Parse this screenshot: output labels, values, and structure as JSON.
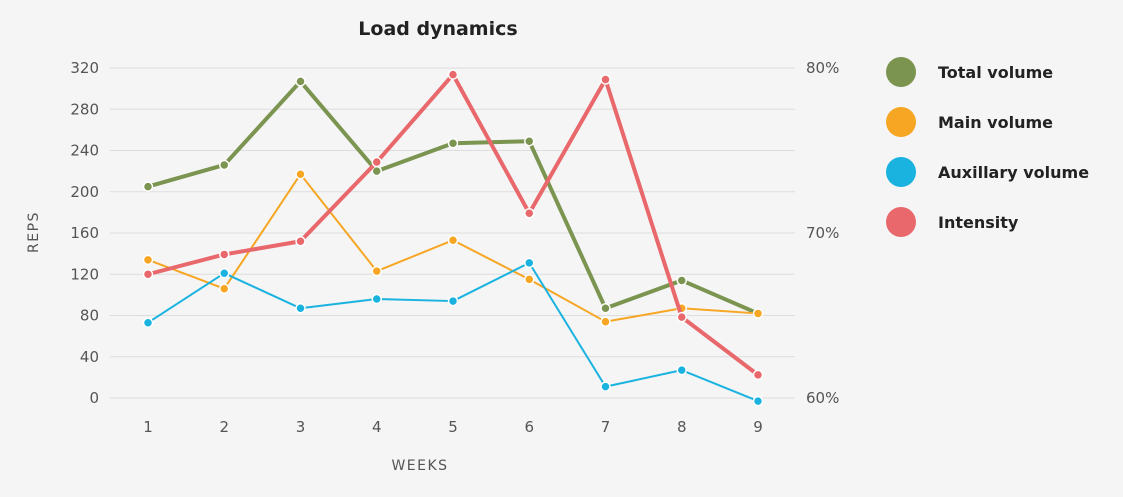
{
  "chart_data": {
    "type": "line",
    "title": "Load dynamics",
    "xlabel": "WEEKS",
    "ylabel": "REPS",
    "x": [
      1,
      2,
      3,
      4,
      5,
      6,
      7,
      8,
      9
    ],
    "ylim": [
      0,
      320
    ],
    "y_ticks": [
      0,
      40,
      80,
      120,
      160,
      200,
      240,
      280,
      320
    ],
    "y2lim": [
      60,
      80
    ],
    "y2_ticks": [
      "60%",
      "70%",
      "80%"
    ],
    "grid": true,
    "legend_position": "right",
    "series": [
      {
        "name": "Total volume",
        "color": "#7b9450",
        "axis": "left",
        "width": 4,
        "values": [
          205,
          226,
          307,
          220,
          247,
          249,
          87,
          114,
          82
        ]
      },
      {
        "name": "Main volume",
        "color": "#f6a623",
        "axis": "left",
        "width": 2,
        "values": [
          134,
          106,
          217,
          123,
          153,
          115,
          74,
          87,
          82
        ]
      },
      {
        "name": "Auxillary volume",
        "color": "#1ab3e0",
        "axis": "left",
        "width": 2,
        "values": [
          73,
          121,
          87,
          96,
          94,
          131,
          11,
          27,
          -3
        ]
      },
      {
        "name": "Intensity",
        "color": "#e8686b",
        "axis": "right",
        "width": 4,
        "values": [
          67.5,
          68.7,
          69.5,
          74.3,
          79.6,
          71.2,
          79.3,
          64.9,
          61.4
        ]
      }
    ]
  }
}
